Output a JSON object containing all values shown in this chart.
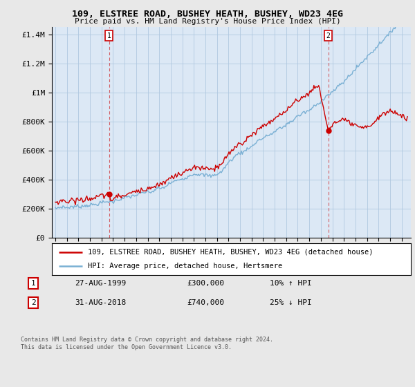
{
  "title": "109, ELSTREE ROAD, BUSHEY HEATH, BUSHEY, WD23 4EG",
  "subtitle": "Price paid vs. HM Land Registry's House Price Index (HPI)",
  "ylabel_ticks": [
    "£0",
    "£200K",
    "£400K",
    "£600K",
    "£800K",
    "£1M",
    "£1.2M",
    "£1.4M"
  ],
  "ytick_values": [
    0,
    200000,
    400000,
    600000,
    800000,
    1000000,
    1200000,
    1400000
  ],
  "ylim": [
    0,
    1450000
  ],
  "legend_line1": "109, ELSTREE ROAD, BUSHEY HEATH, BUSHEY, WD23 4EG (detached house)",
  "legend_line2": "HPI: Average price, detached house, Hertsmere",
  "marker1_date": "27-AUG-1999",
  "marker1_price": "£300,000",
  "marker1_hpi": "10% ↑ HPI",
  "marker2_date": "31-AUG-2018",
  "marker2_price": "£740,000",
  "marker2_hpi": "25% ↓ HPI",
  "footer": "Contains HM Land Registry data © Crown copyright and database right 2024.\nThis data is licensed under the Open Government Licence v3.0.",
  "line_color_red": "#cc0000",
  "line_color_blue": "#7ab0d4",
  "bg_color": "#e8e8e8",
  "plot_bg_color": "#dce8f5",
  "grid_color": "#b0c8e0",
  "marker_box_color": "#cc0000",
  "marker1_x": 1999.65,
  "marker2_x": 2018.65,
  "marker1_y": 300000,
  "marker2_y": 740000,
  "xmin": 1994.7,
  "xmax": 2025.8
}
